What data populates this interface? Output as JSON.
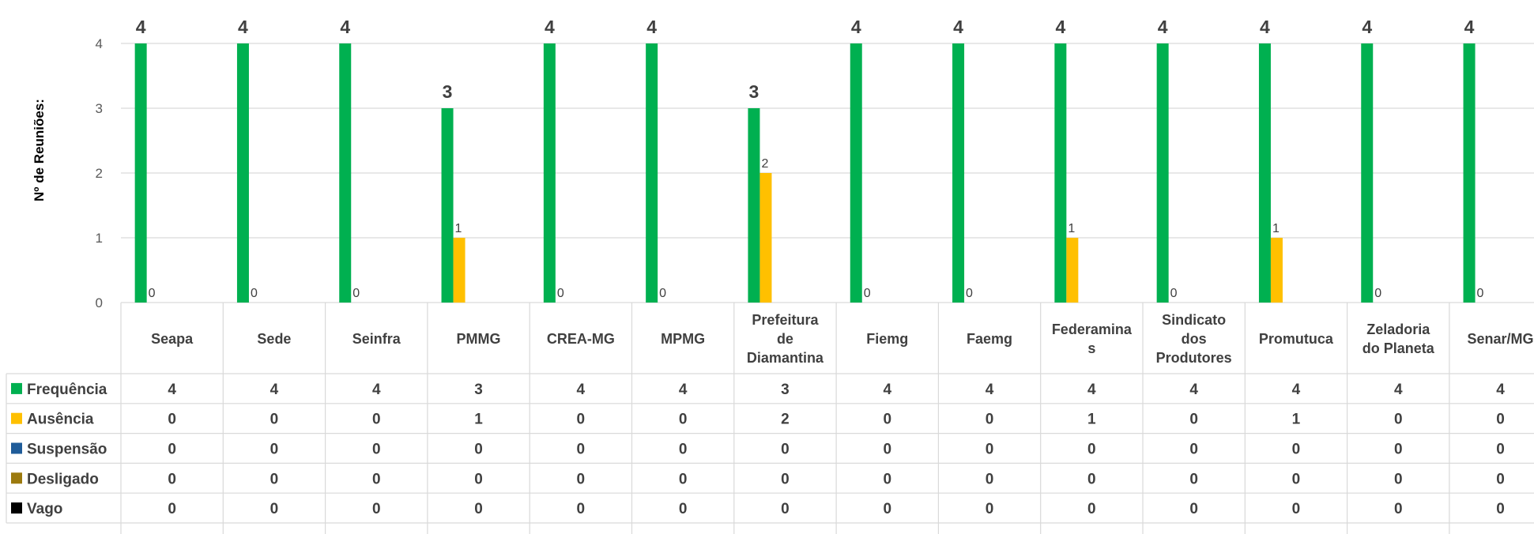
{
  "chart_data": {
    "type": "bar",
    "title": "",
    "ylabel": "Nº de Reuniões:",
    "xlabel": "",
    "ylim": [
      0,
      4
    ],
    "yticks": [
      0,
      1,
      2,
      3,
      4
    ],
    "grid": true,
    "legend": "data-table-left",
    "categories": [
      "Seapa",
      "Sede",
      "Seinfra",
      "PMMG",
      "CREA-MG",
      "MPMG",
      "Prefeitura de Diamantina",
      "Fiemg",
      "Faemg",
      "Federaminas",
      "Sindicato dos Produtores",
      "Promutuca",
      "Zeladoria do Planeta",
      "Senar/MG"
    ],
    "category_lines": [
      [
        "Seapa"
      ],
      [
        "Sede"
      ],
      [
        "Seinfra"
      ],
      [
        "PMMG"
      ],
      [
        "CREA-MG"
      ],
      [
        "MPMG"
      ],
      [
        "Prefeitura",
        "de",
        "Diamantina"
      ],
      [
        "Fiemg"
      ],
      [
        "Faemg"
      ],
      [
        "Federamina",
        "s"
      ],
      [
        "Sindicato",
        "dos",
        "Produtores"
      ],
      [
        "Promutuca"
      ],
      [
        "Zeladoria",
        "do Planeta"
      ],
      [
        "Senar/MG"
      ]
    ],
    "series": [
      {
        "name": "Frequência",
        "color": "#00b050",
        "values": [
          4,
          4,
          4,
          3,
          4,
          4,
          3,
          4,
          4,
          4,
          4,
          4,
          4,
          4
        ]
      },
      {
        "name": "Ausência",
        "color": "#ffc000",
        "values": [
          0,
          0,
          0,
          1,
          0,
          0,
          2,
          0,
          0,
          1,
          0,
          1,
          0,
          0
        ]
      },
      {
        "name": "Suspensão",
        "color": "#1f5c99",
        "values": [
          0,
          0,
          0,
          0,
          0,
          0,
          0,
          0,
          0,
          0,
          0,
          0,
          0,
          0
        ]
      },
      {
        "name": "Desligado",
        "color": "#9c7a0e",
        "values": [
          0,
          0,
          0,
          0,
          0,
          0,
          0,
          0,
          0,
          0,
          0,
          0,
          0,
          0
        ]
      },
      {
        "name": "Vago",
        "color": "#000000",
        "values": [
          0,
          0,
          0,
          0,
          0,
          0,
          0,
          0,
          0,
          0,
          0,
          0,
          0,
          0
        ]
      }
    ]
  }
}
